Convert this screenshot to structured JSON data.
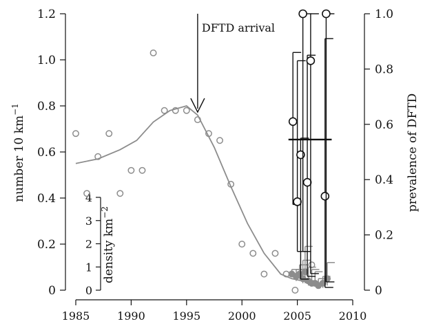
{
  "chart_data": {
    "type": "scatter",
    "title": "",
    "x_ticks": [
      "1985",
      "1990",
      "1995",
      "2000",
      "2005",
      "2010"
    ],
    "xlim": [
      1985,
      2010
    ],
    "y_left": {
      "label_main": "number 10 km",
      "label_sup": "−1",
      "ticks": [
        "0",
        "0.2",
        "0.4",
        "0.6",
        "0.8",
        "1.0",
        "1.2"
      ],
      "ylim": [
        0,
        1.2
      ]
    },
    "y_right": {
      "label": "prevalence of DFTD",
      "ticks": [
        "0",
        "0.2",
        "0.4",
        "0.6",
        "0.8",
        "1.0"
      ],
      "ylim": [
        0,
        1.0
      ]
    },
    "annotation": {
      "text": "DFTD arrival",
      "x": 1996
    },
    "inset_axis": {
      "label_main": "density km",
      "label_sup": "−2",
      "ticks": [
        "0",
        "1",
        "2",
        "3",
        "4"
      ]
    },
    "spotlight_counts": [
      {
        "x": 1985,
        "y": 0.68
      },
      {
        "x": 1986,
        "y": 0.42
      },
      {
        "x": 1987,
        "y": 0.58
      },
      {
        "x": 1988,
        "y": 0.68
      },
      {
        "x": 1989,
        "y": 0.42
      },
      {
        "x": 1990,
        "y": 0.52
      },
      {
        "x": 1991,
        "y": 0.52
      },
      {
        "x": 1992,
        "y": 1.03
      },
      {
        "x": 1993,
        "y": 0.78
      },
      {
        "x": 1994,
        "y": 0.78
      },
      {
        "x": 1995,
        "y": 0.78
      },
      {
        "x": 1996,
        "y": 0.74
      },
      {
        "x": 1997,
        "y": 0.68
      },
      {
        "x": 1998,
        "y": 0.65
      },
      {
        "x": 1999,
        "y": 0.46
      },
      {
        "x": 2000,
        "y": 0.2
      },
      {
        "x": 2001,
        "y": 0.16
      },
      {
        "x": 2002,
        "y": 0.07
      },
      {
        "x": 2003,
        "y": 0.16
      },
      {
        "x": 2004,
        "y": 0.07
      },
      {
        "x": 2004.8,
        "y": 0.0
      },
      {
        "x": 2006.3,
        "y": 0.11
      }
    ],
    "trend_line": [
      {
        "x": 1985,
        "y": 0.55
      },
      {
        "x": 1987,
        "y": 0.57
      },
      {
        "x": 1989,
        "y": 0.61
      },
      {
        "x": 1990.5,
        "y": 0.65
      },
      {
        "x": 1992,
        "y": 0.73
      },
      {
        "x": 1993.5,
        "y": 0.78
      },
      {
        "x": 1995,
        "y": 0.8
      },
      {
        "x": 1996,
        "y": 0.76
      },
      {
        "x": 1997.5,
        "y": 0.62
      },
      {
        "x": 1999,
        "y": 0.45
      },
      {
        "x": 2000.5,
        "y": 0.29
      },
      {
        "x": 2002,
        "y": 0.16
      },
      {
        "x": 2003.5,
        "y": 0.07
      },
      {
        "x": 2004.5,
        "y": 0.05
      },
      {
        "x": 2005.5,
        "y": 0.04
      },
      {
        "x": 2006.5,
        "y": 0.03
      },
      {
        "x": 2007.6,
        "y": 0.03
      }
    ],
    "density_points": [
      {
        "x": 2004.5,
        "y": 0.07,
        "lo": 0.06,
        "hi": 0.09
      },
      {
        "x": 2004.9,
        "y": 0.06,
        "lo": 0.04,
        "hi": 0.09
      },
      {
        "x": 2005.2,
        "y": 0.07,
        "lo": 0.05,
        "hi": 0.11
      },
      {
        "x": 2005.5,
        "y": 0.05,
        "lo": 0.03,
        "hi": 0.13
      },
      {
        "x": 2005.7,
        "y": 0.08,
        "lo": 0.03,
        "hi": 0.19
      },
      {
        "x": 2006.0,
        "y": 0.04,
        "lo": 0.02,
        "hi": 0.1
      },
      {
        "x": 2006.3,
        "y": 0.03,
        "lo": 0.02,
        "hi": 0.09
      },
      {
        "x": 2006.6,
        "y": 0.03,
        "lo": 0.02,
        "hi": 0.08
      },
      {
        "x": 2006.9,
        "y": 0.02,
        "lo": 0.01,
        "hi": 0.05
      },
      {
        "x": 2007.3,
        "y": 0.03,
        "lo": 0.01,
        "hi": 0.06
      },
      {
        "x": 2007.7,
        "y": 0.05,
        "lo": 0.02,
        "hi": 0.12
      }
    ],
    "prevalence_points": [
      {
        "x": 2004.6,
        "y": 0.61,
        "lo": 0.31,
        "hi": 0.86
      },
      {
        "x": 2005.0,
        "y": 0.32,
        "lo": 0.14,
        "hi": 0.83
      },
      {
        "x": 2005.3,
        "y": 0.49,
        "lo": 0.04,
        "hi": 0.55
      },
      {
        "x": 2005.5,
        "y": 1.0,
        "lo": 0.14,
        "hi": 1.0
      },
      {
        "x": 2005.9,
        "y": 0.39,
        "lo": 0.05,
        "hi": 0.85
      },
      {
        "x": 2006.2,
        "y": 0.83,
        "lo": 0.06,
        "hi": 1.0
      },
      {
        "x": 2007.5,
        "y": 0.34,
        "lo": 0.01,
        "hi": 0.91
      },
      {
        "x": 2007.6,
        "y": 1.0,
        "lo": 0.03,
        "hi": 1.0
      }
    ],
    "mean_prevalence": {
      "x_from": 2004.2,
      "x_to": 2008.1,
      "y": 0.545
    },
    "colors": {
      "grey_series": "#8c8c8c",
      "black_series": "#111111",
      "axis": "#111111"
    }
  }
}
